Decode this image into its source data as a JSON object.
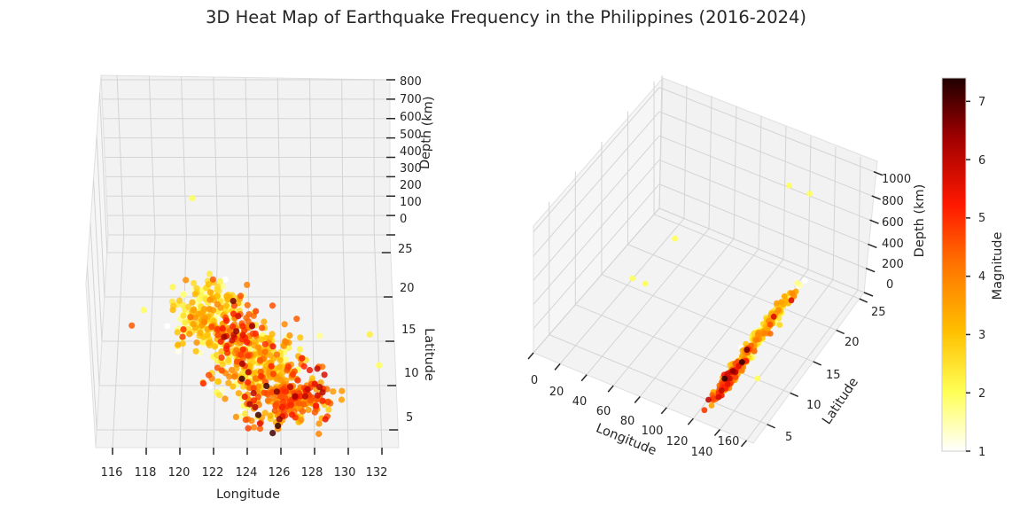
{
  "title": "3D Heat Map of Earthquake Frequency in the Philippines (2016-2024)",
  "colors": {
    "cmap": "hot_r",
    "stops": [
      "#ffffff",
      "#ffff55",
      "#ffc000",
      "#ff7400",
      "#ff1800",
      "#a00000",
      "#200000"
    ]
  },
  "chart_data": [
    {
      "type": "scatter",
      "subtype": "scatter3d",
      "view": "top-down",
      "xlabel": "Longitude",
      "ylabel": "Latitude",
      "zlabel": "Depth (km)",
      "xticks": [
        "116",
        "118",
        "120",
        "122",
        "124",
        "126",
        "128",
        "130",
        "132"
      ],
      "yticks": [
        "5",
        "10",
        "15",
        "20",
        "25"
      ],
      "zticks": [
        "0",
        "100",
        "200",
        "300",
        "400",
        "500",
        "600",
        "700",
        "800"
      ],
      "xlim": [
        115,
        133
      ],
      "ylim": [
        3,
        27
      ],
      "zlim": [
        0,
        800
      ],
      "clusters": [
        {
          "lon": 121.5,
          "lat": 17.0,
          "depth": 30,
          "spread_lon": 1.1,
          "spread_lat": 2.0,
          "mag": 2.4,
          "n": 240
        },
        {
          "lon": 124.5,
          "lat": 11.5,
          "depth": 30,
          "spread_lon": 1.3,
          "spread_lat": 2.3,
          "mag": 2.8,
          "n": 260
        },
        {
          "lon": 126.5,
          "lat": 7.5,
          "depth": 40,
          "spread_lon": 1.2,
          "spread_lat": 1.6,
          "mag": 3.9,
          "n": 280
        },
        {
          "lon": 123.0,
          "lat": 15.5,
          "depth": 25,
          "spread_lon": 0.8,
          "spread_lat": 2.0,
          "mag": 4.2,
          "n": 90
        }
      ],
      "outliers": [
        {
          "lon": 120.5,
          "lat": 19.5,
          "depth": 450,
          "mag": 2.0
        },
        {
          "lon": 117.5,
          "lat": 18.0,
          "depth": 20,
          "mag": 2.0
        },
        {
          "lon": 116.8,
          "lat": 16.5,
          "depth": 10,
          "mag": 4.5
        },
        {
          "lon": 131.5,
          "lat": 15.5,
          "depth": 10,
          "mag": 2.3
        },
        {
          "lon": 132.0,
          "lat": 12.0,
          "depth": 10,
          "mag": 2.0
        },
        {
          "lon": 125.5,
          "lat": 18.5,
          "depth": 20,
          "mag": 4.6
        },
        {
          "lon": 127.0,
          "lat": 17.0,
          "depth": 20,
          "mag": 4.5
        }
      ]
    },
    {
      "type": "scatter",
      "subtype": "scatter3d",
      "view": "perspective",
      "xlabel": "Longitude",
      "ylabel": "Latitude",
      "zlabel": "Depth (km)",
      "xticks": [
        "0",
        "20",
        "40",
        "60",
        "80",
        "100",
        "120",
        "140",
        "160"
      ],
      "yticks": [
        "5",
        "10",
        "15",
        "20",
        "25"
      ],
      "zticks": [
        "0",
        "200",
        "400",
        "600",
        "800",
        "1000"
      ],
      "xlim": [
        0,
        165
      ],
      "ylim": [
        2,
        26
      ],
      "zlim": [
        0,
        1100
      ],
      "clusters": [
        {
          "lon": 123.0,
          "lat": 16.0,
          "depth": 30,
          "spread_lon": 2.0,
          "spread_lat": 3.0,
          "mag": 2.5,
          "n": 220
        },
        {
          "lon": 125.5,
          "lat": 8.0,
          "depth": 40,
          "spread_lon": 1.5,
          "spread_lat": 2.0,
          "mag": 3.8,
          "n": 200
        }
      ],
      "outliers": [
        {
          "lon": 25.0,
          "lat": 23.0,
          "depth": 5,
          "mag": 2.0
        },
        {
          "lon": 20.0,
          "lat": 16.0,
          "depth": 5,
          "mag": 2.0
        },
        {
          "lon": 30.0,
          "lat": 16.0,
          "depth": 5,
          "mag": 2.0
        },
        {
          "lon": 120.0,
          "lat": 22.0,
          "depth": 900,
          "mag": 2.0
        },
        {
          "lon": 125.0,
          "lat": 25.0,
          "depth": 700,
          "mag": 2.0
        },
        {
          "lon": 140.0,
          "lat": 10.0,
          "depth": 10,
          "mag": 2.0
        }
      ]
    }
  ],
  "colorbar": {
    "label": "Magnitude",
    "min": 1,
    "max": 7.4,
    "ticks": [
      "1",
      "2",
      "3",
      "4",
      "5",
      "6",
      "7"
    ]
  }
}
